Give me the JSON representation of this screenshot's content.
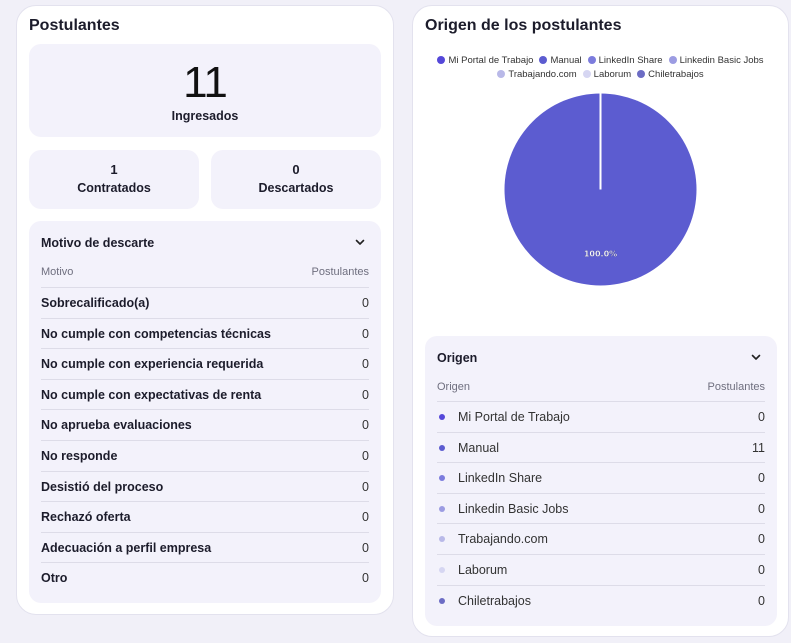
{
  "postulantes": {
    "title": "Postulantes",
    "ingresados": {
      "count": "11",
      "label": "Ingresados"
    },
    "contratados": {
      "count": "1",
      "label": "Contratados"
    },
    "descartados": {
      "count": "0",
      "label": "Descartados"
    },
    "motivo": {
      "title": "Motivo de descarte",
      "col_motivo": "Motivo",
      "col_postulantes": "Postulantes",
      "rows": [
        {
          "label": "Sobrecalificado(a)",
          "value": "0"
        },
        {
          "label": "No cumple con competencias técnicas",
          "value": "0"
        },
        {
          "label": "No cumple con experiencia requerida",
          "value": "0"
        },
        {
          "label": "No cumple con expectativas de renta",
          "value": "0"
        },
        {
          "label": "No aprueba evaluaciones",
          "value": "0"
        },
        {
          "label": "No responde",
          "value": "0"
        },
        {
          "label": "Desistió del proceso",
          "value": "0"
        },
        {
          "label": "Rechazó oferta",
          "value": "0"
        },
        {
          "label": "Adecuación a perfil empresa",
          "value": "0"
        },
        {
          "label": "Otro",
          "value": "0"
        }
      ]
    }
  },
  "origen_card": {
    "title": "Origen de los postulantes",
    "chart_data": {
      "type": "pie",
      "categories": [
        "Mi Portal de Trabajo",
        "Manual",
        "LinkedIn Share",
        "Linkedin Basic Jobs",
        "Trabajando.com",
        "Laborum",
        "Chiletrabajos"
      ],
      "values": [
        0,
        11,
        0,
        0,
        0,
        0,
        0
      ],
      "colors": [
        "#5548d9",
        "#5c5cd0",
        "#7c7cdd",
        "#9c9ce2",
        "#b9b9e8",
        "#d6d6f2",
        "#6c6cc4"
      ],
      "slice_labels": [
        "",
        "100.0%",
        "",
        "",
        "",
        "",
        ""
      ],
      "legend_position": "top"
    },
    "origen": {
      "title": "Origen",
      "col_origen": "Origen",
      "col_postulantes": "Postulantes",
      "rows": [
        {
          "label": "Mi Portal de Trabajo",
          "value": "0",
          "color": "#5548d9"
        },
        {
          "label": "Manual",
          "value": "11",
          "color": "#5c5cd0"
        },
        {
          "label": "LinkedIn Share",
          "value": "0",
          "color": "#7c7cdd"
        },
        {
          "label": "Linkedin Basic Jobs",
          "value": "0",
          "color": "#9c9ce2"
        },
        {
          "label": "Trabajando.com",
          "value": "0",
          "color": "#b9b9e8"
        },
        {
          "label": "Laborum",
          "value": "0",
          "color": "#d6d6f2"
        },
        {
          "label": "Chiletrabajos",
          "value": "0",
          "color": "#6c6cc4"
        }
      ]
    }
  },
  "icons": {
    "collapse": "chevron-down-icon"
  }
}
